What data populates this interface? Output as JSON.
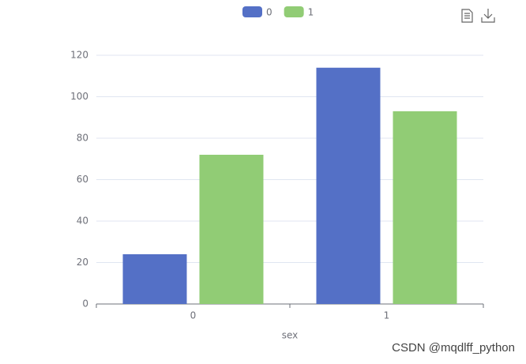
{
  "chart_data": {
    "type": "bar",
    "categories": [
      "0",
      "1"
    ],
    "series": [
      {
        "name": "0",
        "color": "#5470c6",
        "values": [
          24,
          114
        ]
      },
      {
        "name": "1",
        "color": "#91cc75",
        "values": [
          72,
          93
        ]
      }
    ],
    "x_label": "sex",
    "ylim": [
      0,
      120
    ],
    "yticks": [
      0,
      20,
      40,
      60,
      80,
      100,
      120
    ],
    "grid": true
  },
  "watermark": "CSDN @mqdlff_python"
}
